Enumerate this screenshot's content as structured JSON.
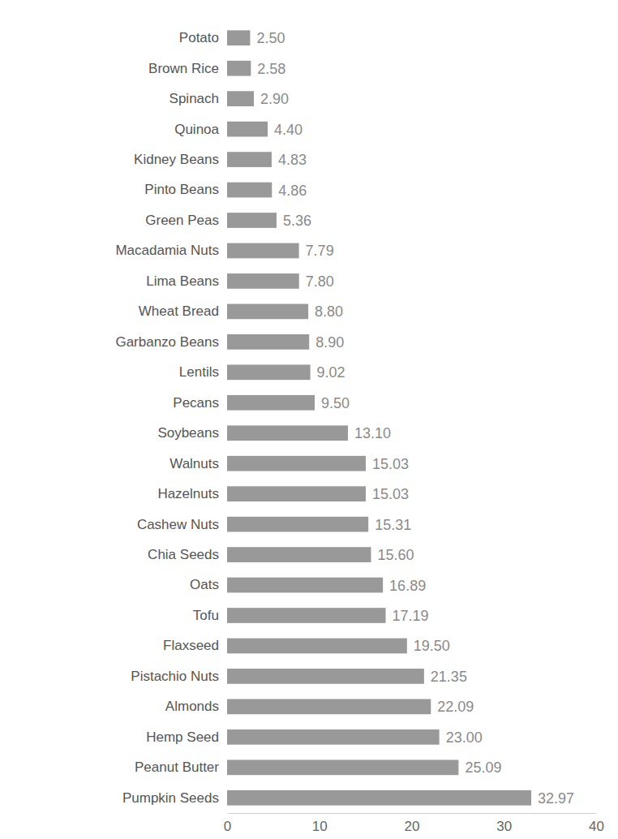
{
  "chart_data": {
    "type": "bar",
    "orientation": "horizontal",
    "categories": [
      "Potato",
      "Brown Rice",
      "Spinach",
      "Quinoa",
      "Kidney Beans",
      "Pinto Beans",
      "Green Peas",
      "Macadamia Nuts",
      "Lima Beans",
      "Wheat Bread",
      "Garbanzo Beans",
      "Lentils",
      "Pecans",
      "Soybeans",
      "Walnuts",
      "Hazelnuts",
      "Cashew Nuts",
      "Chia Seeds",
      "Oats",
      "Tofu",
      "Flaxseed",
      "Pistachio Nuts",
      "Almonds",
      "Hemp Seed",
      "Peanut Butter",
      "Pumpkin Seeds"
    ],
    "values": [
      2.5,
      2.58,
      2.9,
      4.4,
      4.83,
      4.86,
      5.36,
      7.79,
      7.8,
      8.8,
      8.9,
      9.02,
      9.5,
      13.1,
      15.03,
      15.03,
      15.31,
      15.6,
      16.89,
      17.19,
      19.5,
      21.35,
      22.09,
      23.0,
      25.09,
      32.97
    ],
    "value_labels": [
      "2.50",
      "2.58",
      "2.90",
      "4.40",
      "4.83",
      "4.86",
      "5.36",
      "7.79",
      "7.80",
      "8.80",
      "8.90",
      "9.02",
      "9.50",
      "13.10",
      "15.03",
      "15.03",
      "15.31",
      "15.60",
      "16.89",
      "17.19",
      "19.50",
      "21.35",
      "22.09",
      "23.00",
      "25.09",
      "32.97"
    ],
    "color": "#999999",
    "xlim": [
      0,
      40
    ],
    "xticks": [
      0,
      10,
      20,
      30,
      40
    ],
    "data_labels": true,
    "grid": false
  }
}
